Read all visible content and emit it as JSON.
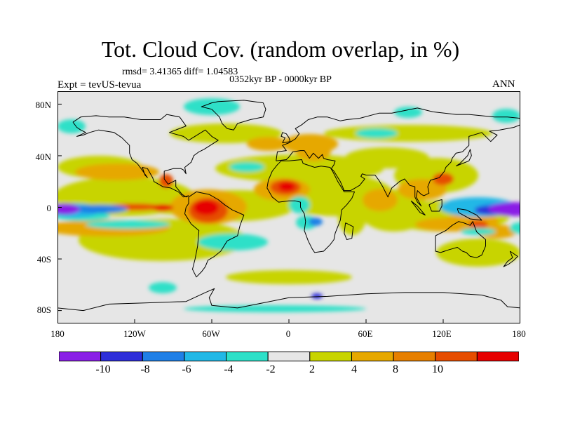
{
  "title": "Tot. Cloud Cov. (random overlap, in %)",
  "stats": "rmsd= 3.41365 diff= 1.04583",
  "period": "0352kyr BP - 0000kyr BP",
  "experiment": "Expt = tevUS-tevua",
  "season": "ANN",
  "lat_ticks": [
    "80N",
    "40N",
    "0",
    "40S",
    "80S"
  ],
  "lon_ticks": [
    "180",
    "120W",
    "60W",
    "0",
    "60E",
    "120E",
    "180"
  ],
  "colorbar": {
    "labels": [
      "-10",
      "-8",
      "-6",
      "-4",
      "-2",
      "2",
      "4",
      "8",
      "10"
    ],
    "colors": [
      "#8a1fe6",
      "#2e2ed9",
      "#1f7fe6",
      "#21b8e6",
      "#2de0c8",
      "#e6e6e6",
      "#c8d400",
      "#e6a800",
      "#e67f00",
      "#e64d00",
      "#e60000"
    ]
  }
}
